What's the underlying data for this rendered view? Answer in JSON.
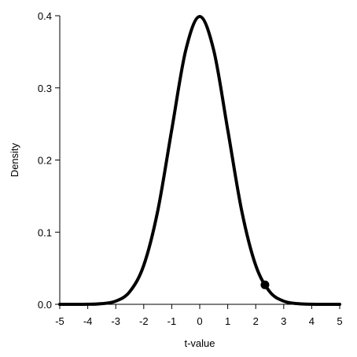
{
  "chart_data": {
    "type": "line",
    "title": "",
    "xlabel": "t-value",
    "ylabel": "Density",
    "xlim": [
      -5,
      5
    ],
    "ylim": [
      0,
      0.4
    ],
    "x_ticks": [
      -5,
      -4,
      -3,
      -2,
      -1,
      0,
      1,
      2,
      3,
      4,
      5
    ],
    "x_tick_labels": [
      "-5",
      "-4",
      "-3",
      "-2",
      "-1",
      "0",
      "1",
      "2",
      "3",
      "4",
      "5"
    ],
    "y_ticks": [
      0.0,
      0.1,
      0.2,
      0.3,
      0.4
    ],
    "y_tick_labels": [
      "0.0",
      "0.1",
      "0.2",
      "0.3",
      "0.4"
    ],
    "grid": false,
    "legend": "none",
    "series": [
      {
        "curve": "density",
        "x": [
          -5,
          -4.5,
          -4,
          -3.5,
          -3,
          -2.5,
          -2,
          -1.5,
          -1,
          -0.5,
          0,
          0.5,
          1,
          1.5,
          2,
          2.5,
          3,
          3.5,
          4,
          4.5,
          5
        ],
        "y": [
          0.0,
          0.0,
          0.0001,
          0.0009,
          0.0044,
          0.0175,
          0.054,
          0.1295,
          0.242,
          0.3521,
          0.3989,
          0.3521,
          0.242,
          0.1295,
          0.054,
          0.0175,
          0.0044,
          0.0009,
          0.0001,
          0.0,
          0.0
        ],
        "color": "#000000"
      }
    ],
    "points": [
      {
        "x": 2.33,
        "y": 0.027,
        "color": "#000000"
      }
    ]
  }
}
